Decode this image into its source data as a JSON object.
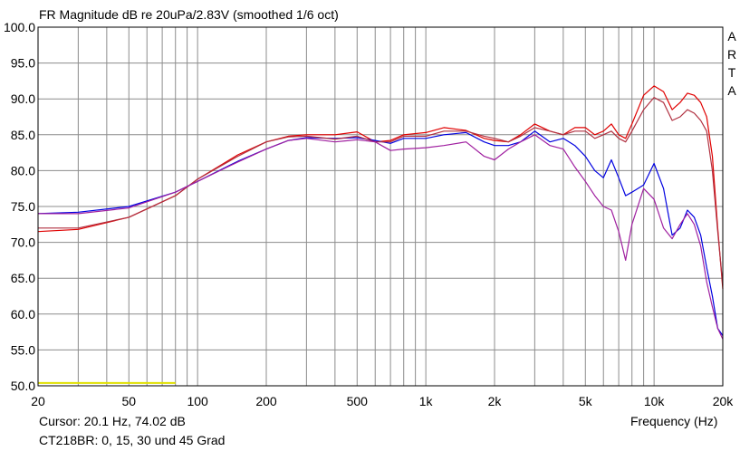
{
  "chart_data": {
    "type": "line",
    "title": "FR Magnitude dB re 20uPa/2.83V (smoothed 1/6 oct)",
    "xlabel": "Frequency (Hz)",
    "ylabel": "",
    "xscale": "log",
    "xlim": [
      20,
      20000
    ],
    "ylim": [
      50,
      100
    ],
    "grid": true,
    "legend": "none",
    "xticks": [
      {
        "value": 20,
        "label": "20"
      },
      {
        "value": 50,
        "label": "50"
      },
      {
        "value": 100,
        "label": "100"
      },
      {
        "value": 200,
        "label": "200"
      },
      {
        "value": 500,
        "label": "500"
      },
      {
        "value": 1000,
        "label": "1k"
      },
      {
        "value": 2000,
        "label": "2k"
      },
      {
        "value": 5000,
        "label": "5k"
      },
      {
        "value": 10000,
        "label": "10k"
      },
      {
        "value": 20000,
        "label": "20k"
      }
    ],
    "yticks": [
      {
        "value": 100,
        "label": "100.0"
      },
      {
        "value": 95,
        "label": "95.0"
      },
      {
        "value": 90,
        "label": "90.0"
      },
      {
        "value": 85,
        "label": "85.0"
      },
      {
        "value": 80,
        "label": "80.0"
      },
      {
        "value": 75,
        "label": "75.0"
      },
      {
        "value": 70,
        "label": "70.0"
      },
      {
        "value": 65,
        "label": "65.0"
      },
      {
        "value": 60,
        "label": "60.0"
      },
      {
        "value": 55,
        "label": "55.0"
      },
      {
        "value": 50,
        "label": "50.0"
      }
    ],
    "series": [
      {
        "color": "#e00000",
        "points": [
          [
            20,
            71.5
          ],
          [
            30,
            71.8
          ],
          [
            50,
            73.5
          ],
          [
            80,
            76.5
          ],
          [
            100,
            78.8
          ],
          [
            150,
            82.2
          ],
          [
            200,
            84.0
          ],
          [
            250,
            84.8
          ],
          [
            300,
            85.0
          ],
          [
            400,
            85.0
          ],
          [
            500,
            85.4
          ],
          [
            600,
            84.0
          ],
          [
            700,
            84.2
          ],
          [
            800,
            85.0
          ],
          [
            1000,
            85.3
          ],
          [
            1200,
            86.0
          ],
          [
            1500,
            85.6
          ],
          [
            1800,
            84.5
          ],
          [
            2000,
            84.2
          ],
          [
            2300,
            84.0
          ],
          [
            2600,
            85.0
          ],
          [
            3000,
            86.5
          ],
          [
            3500,
            85.5
          ],
          [
            4000,
            85.0
          ],
          [
            4500,
            86.0
          ],
          [
            5000,
            86.0
          ],
          [
            5500,
            85.0
          ],
          [
            6000,
            85.5
          ],
          [
            6500,
            86.5
          ],
          [
            7000,
            85.0
          ],
          [
            7500,
            84.5
          ],
          [
            8000,
            86.5
          ],
          [
            9000,
            90.5
          ],
          [
            10000,
            91.8
          ],
          [
            11000,
            91.0
          ],
          [
            12000,
            88.5
          ],
          [
            13000,
            89.5
          ],
          [
            14000,
            90.8
          ],
          [
            15000,
            90.5
          ],
          [
            16000,
            89.5
          ],
          [
            17000,
            87.5
          ],
          [
            18000,
            82.0
          ],
          [
            19000,
            72.0
          ],
          [
            20000,
            63.5
          ]
        ]
      },
      {
        "color": "#0000e0",
        "points": [
          [
            20,
            74.0
          ],
          [
            30,
            74.2
          ],
          [
            50,
            75.0
          ],
          [
            80,
            77.0
          ],
          [
            100,
            78.5
          ],
          [
            150,
            81.3
          ],
          [
            200,
            83.0
          ],
          [
            250,
            84.2
          ],
          [
            300,
            84.6
          ],
          [
            400,
            84.5
          ],
          [
            500,
            84.6
          ],
          [
            600,
            84.2
          ],
          [
            700,
            83.8
          ],
          [
            800,
            84.5
          ],
          [
            1000,
            84.5
          ],
          [
            1200,
            85.0
          ],
          [
            1500,
            85.3
          ],
          [
            1800,
            84.0
          ],
          [
            2000,
            83.5
          ],
          [
            2300,
            83.5
          ],
          [
            2600,
            84.0
          ],
          [
            3000,
            85.5
          ],
          [
            3500,
            84.0
          ],
          [
            4000,
            84.5
          ],
          [
            4500,
            83.5
          ],
          [
            5000,
            82.0
          ],
          [
            5500,
            80.0
          ],
          [
            6000,
            79.0
          ],
          [
            6500,
            81.5
          ],
          [
            7000,
            79.0
          ],
          [
            7500,
            76.5
          ],
          [
            8000,
            77.0
          ],
          [
            9000,
            78.0
          ],
          [
            10000,
            81.0
          ],
          [
            11000,
            77.5
          ],
          [
            12000,
            71.0
          ],
          [
            13000,
            72.0
          ],
          [
            14000,
            74.5
          ],
          [
            15000,
            73.5
          ],
          [
            16000,
            71.0
          ],
          [
            17000,
            66.5
          ],
          [
            18000,
            62.5
          ],
          [
            19000,
            58.0
          ],
          [
            20000,
            57.0
          ]
        ]
      },
      {
        "color": "#b03040",
        "points": [
          [
            20,
            72.0
          ],
          [
            30,
            72.0
          ],
          [
            50,
            73.5
          ],
          [
            80,
            76.5
          ],
          [
            100,
            78.8
          ],
          [
            150,
            82.0
          ],
          [
            200,
            84.0
          ],
          [
            250,
            84.7
          ],
          [
            300,
            84.8
          ],
          [
            400,
            84.4
          ],
          [
            500,
            84.8
          ],
          [
            600,
            84.0
          ],
          [
            700,
            84.0
          ],
          [
            800,
            84.8
          ],
          [
            1000,
            84.8
          ],
          [
            1200,
            85.5
          ],
          [
            1500,
            85.5
          ],
          [
            1800,
            84.8
          ],
          [
            2000,
            84.5
          ],
          [
            2300,
            84.0
          ],
          [
            2600,
            84.8
          ],
          [
            3000,
            86.0
          ],
          [
            3500,
            85.5
          ],
          [
            4000,
            85.0
          ],
          [
            4500,
            85.5
          ],
          [
            5000,
            85.5
          ],
          [
            5500,
            84.5
          ],
          [
            6000,
            85.0
          ],
          [
            6500,
            85.5
          ],
          [
            7000,
            84.5
          ],
          [
            7500,
            84.0
          ],
          [
            8000,
            85.5
          ],
          [
            9000,
            88.5
          ],
          [
            10000,
            90.2
          ],
          [
            11000,
            89.5
          ],
          [
            12000,
            87.0
          ],
          [
            13000,
            87.5
          ],
          [
            14000,
            88.5
          ],
          [
            15000,
            88.0
          ],
          [
            16000,
            87.0
          ],
          [
            17000,
            85.5
          ],
          [
            18000,
            80.0
          ],
          [
            19000,
            71.5
          ],
          [
            20000,
            64.0
          ]
        ]
      },
      {
        "color": "#a020a0",
        "points": [
          [
            20,
            74.0
          ],
          [
            30,
            74.0
          ],
          [
            50,
            74.8
          ],
          [
            80,
            77.0
          ],
          [
            100,
            78.5
          ],
          [
            150,
            81.2
          ],
          [
            200,
            83.0
          ],
          [
            250,
            84.2
          ],
          [
            300,
            84.5
          ],
          [
            400,
            84.0
          ],
          [
            500,
            84.3
          ],
          [
            600,
            84.0
          ],
          [
            700,
            82.8
          ],
          [
            800,
            83.0
          ],
          [
            1000,
            83.2
          ],
          [
            1200,
            83.5
          ],
          [
            1500,
            84.0
          ],
          [
            1800,
            82.0
          ],
          [
            2000,
            81.5
          ],
          [
            2300,
            83.0
          ],
          [
            2600,
            84.0
          ],
          [
            3000,
            85.0
          ],
          [
            3500,
            83.5
          ],
          [
            4000,
            83.0
          ],
          [
            4500,
            80.5
          ],
          [
            5000,
            78.5
          ],
          [
            5500,
            76.5
          ],
          [
            6000,
            75.0
          ],
          [
            6500,
            74.5
          ],
          [
            7000,
            71.5
          ],
          [
            7500,
            67.5
          ],
          [
            8000,
            72.5
          ],
          [
            9000,
            77.5
          ],
          [
            10000,
            76.0
          ],
          [
            11000,
            72.0
          ],
          [
            12000,
            70.5
          ],
          [
            13000,
            72.5
          ],
          [
            14000,
            74.0
          ],
          [
            15000,
            72.5
          ],
          [
            16000,
            69.5
          ],
          [
            17000,
            64.5
          ],
          [
            18000,
            61.0
          ],
          [
            19000,
            58.0
          ],
          [
            20000,
            56.5
          ]
        ]
      }
    ],
    "annotations": {
      "cursor": "Cursor: 20.1 Hz, 74.02 dB",
      "caption": "CT218BR: 0, 15, 30 und 45 Grad",
      "brand_letters": [
        "A",
        "R",
        "T",
        "A"
      ]
    },
    "cursor_marker": {
      "color": "#e0e000",
      "x_from": 20,
      "x_to": 80,
      "y": 50.4
    }
  }
}
